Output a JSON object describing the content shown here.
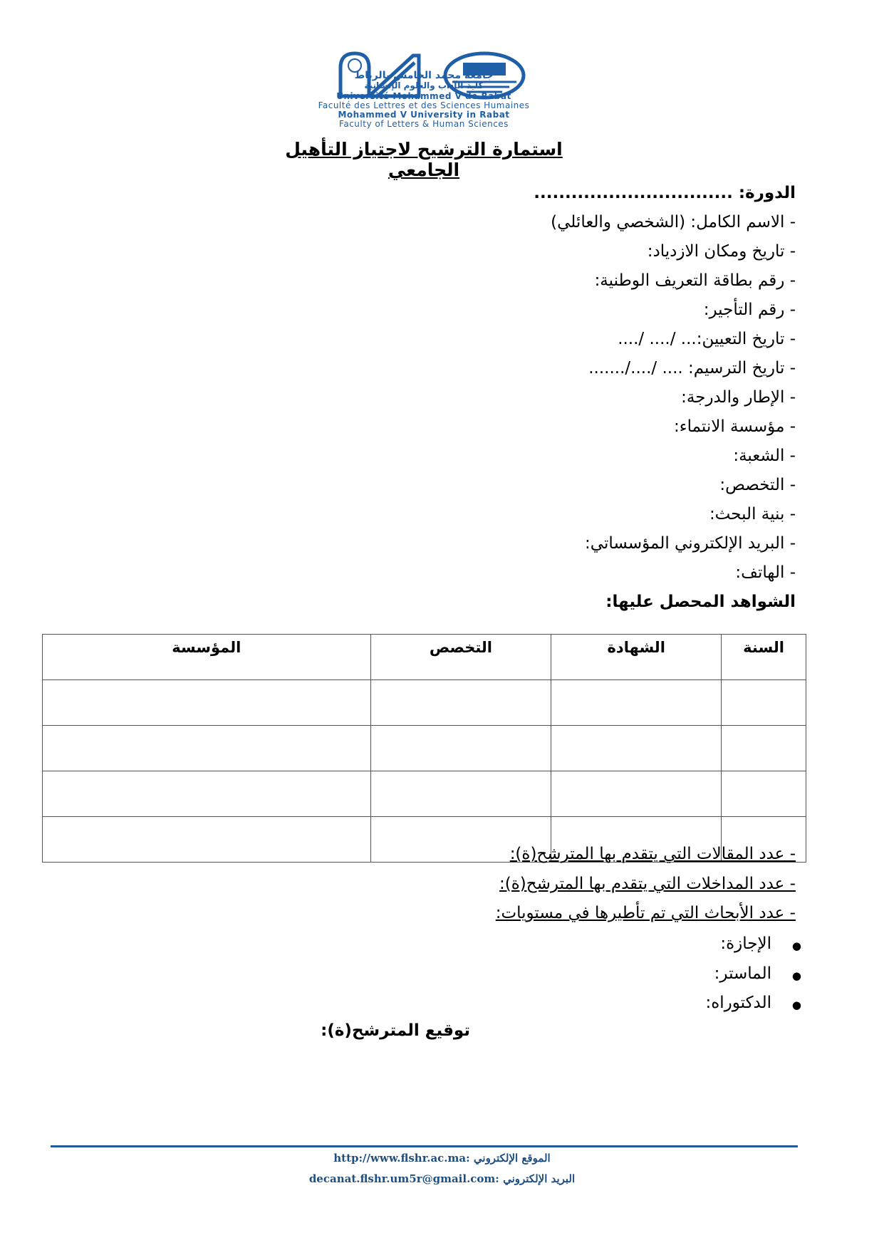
{
  "header": {
    "logo_arabic_line1": "جامعة محمد الخامس بالرباط",
    "logo_arabic_line2": "كلية الآداب والعلوم الإنسانية",
    "logo_fr_university": "Université Mohammed V de Rabat",
    "logo_fr_faculty": "Faculté des Lettres et des Sciences Humaines",
    "logo_en_university": "Mohammed V University in Rabat",
    "logo_en_faculty": "Faculty of Letters & Human Sciences",
    "brand_color": "#1f5fa8"
  },
  "title": "استمارة الترشيح لاجتياز التأهيل الجامعي",
  "session": "الدورة: ................................",
  "fields": [
    "- الاسم الكامل: (الشخصي والعائلي)",
    "- تاريخ ومكان الازدياد:",
    "-  رقم بطاقة التعريف الوطنية:",
    "- رقم التأجير:",
    "- تاريخ التعيين:... /.... /....",
    "- تاريخ الترسيم: .... /..../.......",
    "- الإطار والدرجة:",
    "- مؤسسة الانتماء:",
    "- الشعبة:",
    "- التخصص:",
    "- بنية البحث:",
    "- البريد الإلكتروني المؤسساتي:",
    "- الهاتف:"
  ],
  "degrees_heading": "الشواهد المحصل عليها:",
  "table": {
    "headers": [
      "السنة",
      "الشهادة",
      "التخصص",
      "المؤسسة"
    ]
  },
  "counts": [
    "- عدد المقالات التي يتقدم بها المترشح(ة):",
    "- عدد المداخلات التي يتقدم بها المترشح(ة):",
    "- عدد الأبحاث التي تم تأطيرها في مستويات:"
  ],
  "levels": [
    "الإجازة:",
    "الماستر:",
    "الدكتوراه:"
  ],
  "signature": "توقيع المترشح(ة):",
  "footer": {
    "website": "http://www.flshr.ac.ma: الموقع الإلكتروني",
    "email": "decanat.flshr.um5r@gmail.com: البريد الإلكتروني"
  }
}
